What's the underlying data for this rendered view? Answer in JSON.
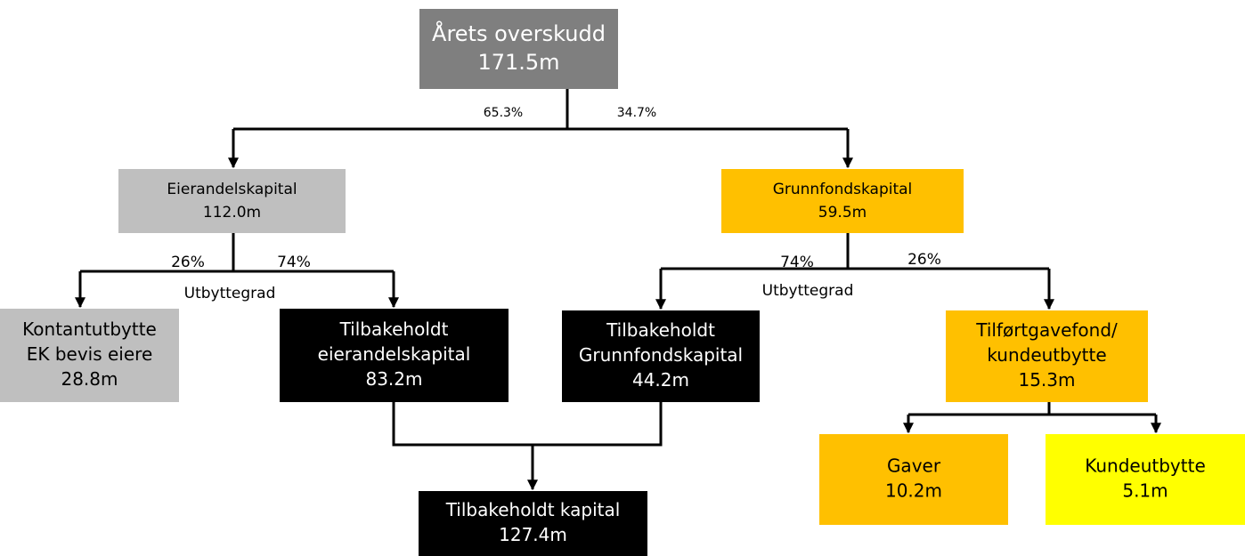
{
  "nodes": [
    {
      "lines": [
        "Årets overskudd",
        "171.5m"
      ]
    },
    {
      "lines": [
        "Eierandelskapital",
        "112.0m"
      ]
    },
    {
      "lines": [
        "Grunnfondskapital",
        "59.5m"
      ]
    },
    {
      "lines": [
        "Kontantutbytte",
        "EK bevis eiere",
        "28.8m"
      ]
    },
    {
      "lines": [
        "Tilbakeholdt",
        "eierandelskapital",
        "83.2m"
      ]
    },
    {
      "lines": [
        "Tilbakeholdt",
        "Grunnfondskapital",
        "44.2m"
      ]
    },
    {
      "lines": [
        "Tilførtgavefond/",
        "kundeutbytte",
        "15.3m"
      ]
    },
    {
      "lines": [
        "Gaver",
        "10.2m"
      ]
    },
    {
      "lines": [
        "Kundeutbytte",
        "5.1m"
      ]
    },
    {
      "lines": [
        "Tilbakeholdt kapital",
        "127.4m"
      ]
    }
  ],
  "labels": [
    "65.3%",
    "34.7%",
    "26%",
    "74%",
    "Utbyttegrad",
    "74%",
    "26%",
    "Utbyttegrad"
  ]
}
